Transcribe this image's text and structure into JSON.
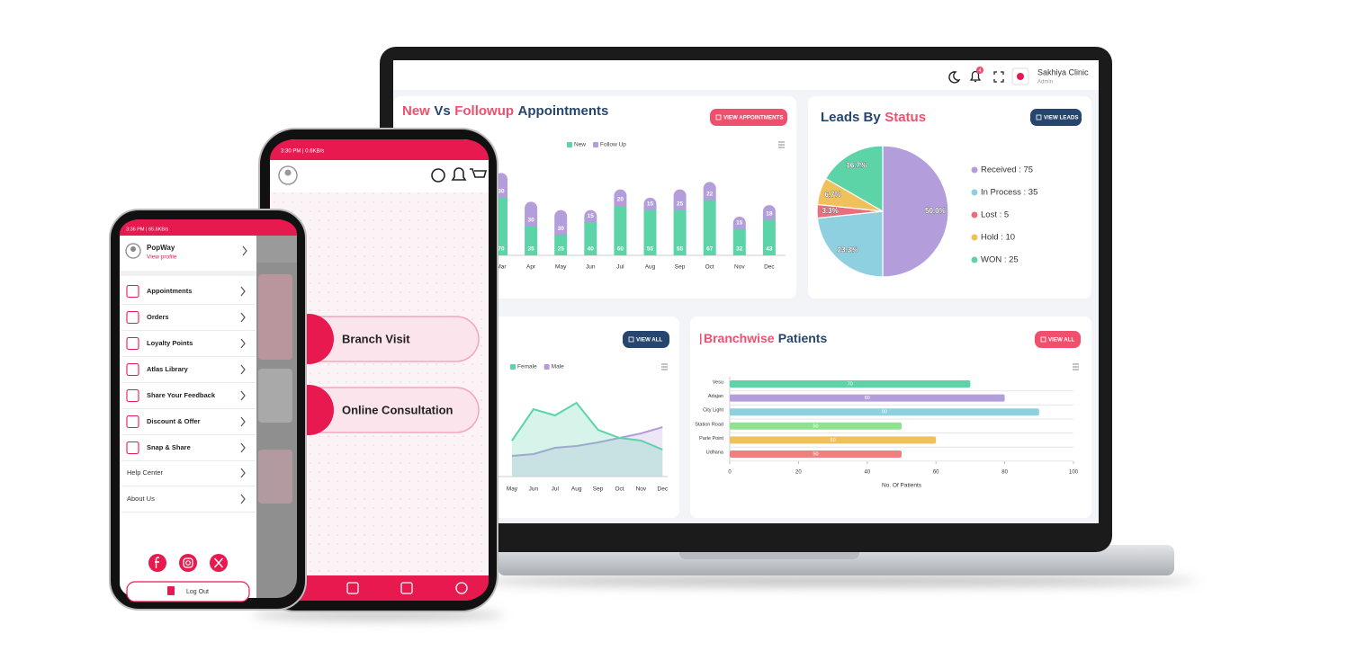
{
  "laptop": {
    "header": {
      "notification_badge": "4",
      "user_name": "Sakhiya Clinic",
      "user_role": "Admin"
    },
    "appointments_chart": {
      "type": "bar",
      "stacked": true,
      "title": [
        "New",
        "Vs",
        "Followup",
        "Appointments"
      ],
      "title_accent": [
        true,
        false,
        true,
        false
      ],
      "button": "VIEW APPOINTMENTS",
      "categories": [
        "Mar",
        "Apr",
        "May",
        "Jun",
        "Jul",
        "Aug",
        "Sep",
        "Oct",
        "Nov",
        "Dec"
      ],
      "series": [
        {
          "name": "New",
          "color": "#5dd3a8",
          "values": [
            70,
            35,
            25,
            40,
            60,
            55,
            55,
            67,
            32,
            43
          ]
        },
        {
          "name": "Follow Up",
          "color": "#b39ddb",
          "values": [
            30,
            30,
            30,
            15,
            20,
            15,
            25,
            22,
            15,
            18
          ]
        }
      ],
      "ylim": [
        0,
        120
      ]
    },
    "leads_chart": {
      "type": "pie",
      "title": [
        "Leads By",
        "Status"
      ],
      "title_accent": [
        false,
        true
      ],
      "button": "VIEW LEADS",
      "categories": [
        "Received",
        "In Process",
        "Lost",
        "Hold",
        "WON"
      ],
      "values": [
        75,
        35,
        5,
        10,
        25
      ],
      "value_labels": [
        "50.0%",
        "23.3%",
        "3.3%",
        "6.7%",
        "16.7%"
      ],
      "legend_labels": [
        "Received : 75",
        "In Process : 35",
        "Lost : 5",
        "Hold : 10",
        "WON : 25"
      ],
      "colors": [
        "#b39ddb",
        "#8ecfe0",
        "#e8707e",
        "#f0c05a",
        "#5dd3a8"
      ]
    },
    "gender_chart": {
      "type": "area",
      "button": "VIEW ALL",
      "categories": [
        "May",
        "Jun",
        "Jul",
        "Aug",
        "Sep",
        "Oct",
        "Nov",
        "Dec"
      ],
      "series": [
        {
          "name": "Female",
          "color": "#5dd3a8",
          "values": [
            40,
            75,
            68,
            82,
            52,
            43,
            40,
            30
          ]
        },
        {
          "name": "Male",
          "color": "#b39ddb",
          "values": [
            23,
            25,
            32,
            34,
            38,
            43,
            48,
            55
          ]
        }
      ],
      "ylim": [
        0,
        100
      ]
    },
    "branch_chart": {
      "type": "bar",
      "orientation": "horizontal",
      "title": [
        "Branchwise",
        "Patients"
      ],
      "title_accent": [
        true,
        false
      ],
      "button": "VIEW ALL",
      "categories": [
        "Vesu",
        "Adajan",
        "City Light",
        "Station Road",
        "Parle Point",
        "Udhana"
      ],
      "values": [
        70,
        80,
        90,
        50,
        60,
        50
      ],
      "colors": [
        "#5dd3a8",
        "#b39ddb",
        "#8ecfe0",
        "#8fe38f",
        "#f0c05a",
        "#f08080"
      ],
      "xlim": [
        0,
        100
      ],
      "xticks": [
        0,
        20,
        40,
        60,
        80,
        100
      ],
      "xlabel": "No. Of Patients"
    }
  },
  "phone_large": {
    "status": "3:30 PM | 0.6KB/s",
    "options": [
      "Branch Visit",
      "Online Consultation"
    ]
  },
  "phone_small": {
    "status": "3:36 PM | 65.6KB/s",
    "profile": {
      "name": "PopWay",
      "link": "View profile"
    },
    "menu": [
      "Appointments",
      "Orders",
      "Loyalty Points",
      "Atlas Library",
      "Share Your Feedback",
      "Discount & Offer",
      "Snap & Share"
    ],
    "extra_menu": [
      "Help Center",
      "About Us"
    ],
    "logout": "Log Out"
  }
}
